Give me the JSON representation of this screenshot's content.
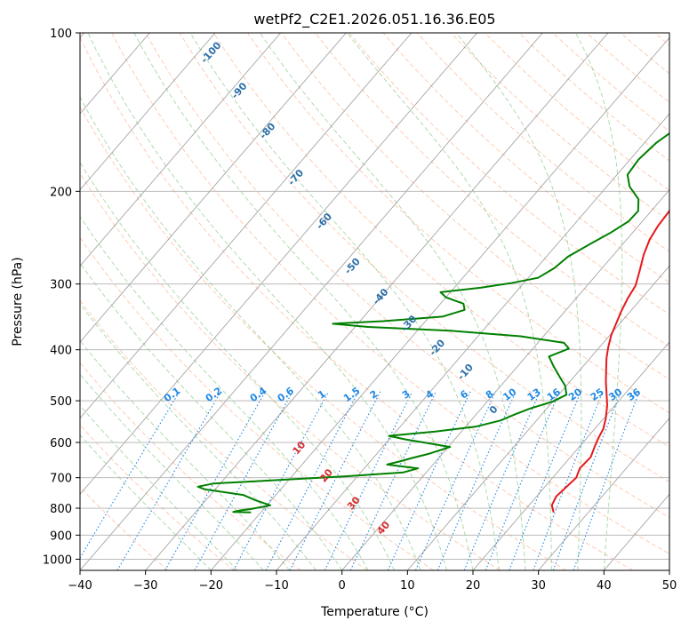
{
  "chart_data": {
    "type": "line",
    "subtype": "skew-T log-P diagram",
    "title": "wetPf2_C2E1.2026.051.16.36.E05",
    "xlabel": "Temperature (°C)",
    "ylabel": "Pressure (hPa)",
    "xlim": [
      -40,
      50
    ],
    "ylim": [
      1050,
      100
    ],
    "y_scale": "log",
    "grid": true,
    "x_ticks": [
      "−40",
      "−30",
      "−20",
      "−10",
      "0",
      "10",
      "20",
      "30",
      "40",
      "50"
    ],
    "x_tick_values": [
      -40,
      -30,
      -20,
      -10,
      0,
      10,
      20,
      30,
      40,
      50
    ],
    "y_ticks": [
      "100",
      "200",
      "300",
      "400",
      "500",
      "600",
      "700",
      "800",
      "900",
      "1000"
    ],
    "y_tick_values": [
      100,
      200,
      300,
      400,
      500,
      600,
      700,
      800,
      900,
      1000
    ],
    "colors": {
      "temperature": "#e41a1c",
      "dewpoint": "#008000",
      "isotherm": "#808080",
      "dry_adiabat": "#fc8d59",
      "moist_adiabat": "#4daf4a",
      "mixing_ratio": "#1e88e5",
      "isotherm_label": "#d32f2f",
      "moist_label": "#2b6fa8"
    },
    "series": [
      {
        "key": "temperature",
        "points": [
          [
            24.7,
            815
          ],
          [
            23.5,
            790
          ],
          [
            23.0,
            760
          ],
          [
            23.4,
            720
          ],
          [
            23.6,
            700
          ],
          [
            22.9,
            672
          ],
          [
            23.1,
            640
          ],
          [
            22.3,
            610
          ],
          [
            21.8,
            590
          ],
          [
            21.3,
            565
          ],
          [
            20.3,
            540
          ],
          [
            18.8,
            510
          ],
          [
            17.2,
            485
          ],
          [
            15.5,
            460
          ],
          [
            14.0,
            437
          ],
          [
            12.5,
            415
          ],
          [
            11.3,
            395
          ],
          [
            10.2,
            375
          ],
          [
            9.4,
            356
          ],
          [
            8.6,
            338
          ],
          [
            7.9,
            320
          ],
          [
            7.4,
            302
          ],
          [
            6.0,
            282
          ],
          [
            4.6,
            264
          ],
          [
            3.5,
            247
          ],
          [
            3.0,
            233
          ],
          [
            2.8,
            220
          ],
          [
            2.3,
            203
          ],
          [
            1.0,
            188
          ],
          [
            -1.0,
            173
          ],
          [
            -2.7,
            160
          ],
          [
            -3.0,
            147
          ],
          [
            -3.2,
            136
          ],
          [
            -3.3,
            126
          ],
          [
            -3.0,
            116
          ],
          [
            -2.4,
            107
          ],
          [
            -1.9,
            100
          ]
        ]
      },
      {
        "key": "dewpoint",
        "points": [
          [
            -21.5,
            815
          ],
          [
            -24.3,
            813
          ],
          [
            -23.5,
            808
          ],
          [
            -22.0,
            803
          ],
          [
            -19.5,
            790
          ],
          [
            -22.5,
            772
          ],
          [
            -25.0,
            755
          ],
          [
            -31.5,
            737
          ],
          [
            -33.0,
            728
          ],
          [
            -31.0,
            718
          ],
          [
            -25.0,
            711
          ],
          [
            -12.0,
            696
          ],
          [
            -3.5,
            684
          ],
          [
            -1.8,
            672
          ],
          [
            -7.0,
            661
          ],
          [
            -5.5,
            652
          ],
          [
            -4.0,
            642
          ],
          [
            -2.0,
            630
          ],
          [
            0.3,
            612
          ],
          [
            -4.0,
            601
          ],
          [
            -7.5,
            592
          ],
          [
            -10.5,
            583
          ],
          [
            -4.0,
            572
          ],
          [
            1.5,
            560
          ],
          [
            4.5,
            545
          ],
          [
            6.0,
            530
          ],
          [
            7.5,
            517
          ],
          [
            10.0,
            502
          ],
          [
            11.2,
            487
          ],
          [
            9.8,
            468
          ],
          [
            8.0,
            452
          ],
          [
            5.5,
            430
          ],
          [
            3.5,
            412
          ],
          [
            5.5,
            398
          ],
          [
            4.0,
            388
          ],
          [
            -3.5,
            377
          ],
          [
            -15.0,
            368
          ],
          [
            -28.0,
            362
          ],
          [
            -33.8,
            357
          ],
          [
            -26.5,
            353
          ],
          [
            -18.0,
            346
          ],
          [
            -15.5,
            336
          ],
          [
            -16.5,
            327
          ],
          [
            -20.0,
            318
          ],
          [
            -21.5,
            311
          ],
          [
            -16.0,
            305
          ],
          [
            -12.0,
            299
          ],
          [
            -8.5,
            292
          ],
          [
            -7.3,
            280
          ],
          [
            -6.7,
            266
          ],
          [
            -5.0,
            252
          ],
          [
            -3.4,
            240
          ],
          [
            -2.1,
            228
          ],
          [
            -2.0,
            218
          ],
          [
            -3.5,
            207
          ],
          [
            -6.5,
            196
          ],
          [
            -8.4,
            186
          ],
          [
            -8.7,
            174
          ],
          [
            -8.2,
            162
          ],
          [
            -6.8,
            150
          ],
          [
            -5.0,
            139
          ],
          [
            -2.7,
            126
          ],
          [
            -0.6,
            115
          ],
          [
            0.7,
            107
          ],
          [
            1.0,
            100
          ]
        ]
      }
    ],
    "mixing_ratio_labels": [
      "0.1",
      "0.2",
      "0.4",
      "0.6",
      "1",
      "1.5",
      "2",
      "3",
      "4",
      "6",
      "8",
      "10",
      "13",
      "16",
      "20",
      "25",
      "30",
      "36"
    ],
    "mixing_ratio_values": [
      0.1,
      0.2,
      0.4,
      0.6,
      1,
      1.5,
      2,
      3,
      4,
      6,
      8,
      10,
      13,
      16,
      20,
      25,
      30,
      36
    ],
    "moist_adiabat_labels": [
      "-100",
      "-90",
      "-80",
      "-70",
      "-60",
      "-50",
      "-40",
      "-30",
      "-20",
      "-10",
      "0"
    ],
    "isotherm_labels": [
      "10",
      "20",
      "30",
      "40"
    ]
  }
}
